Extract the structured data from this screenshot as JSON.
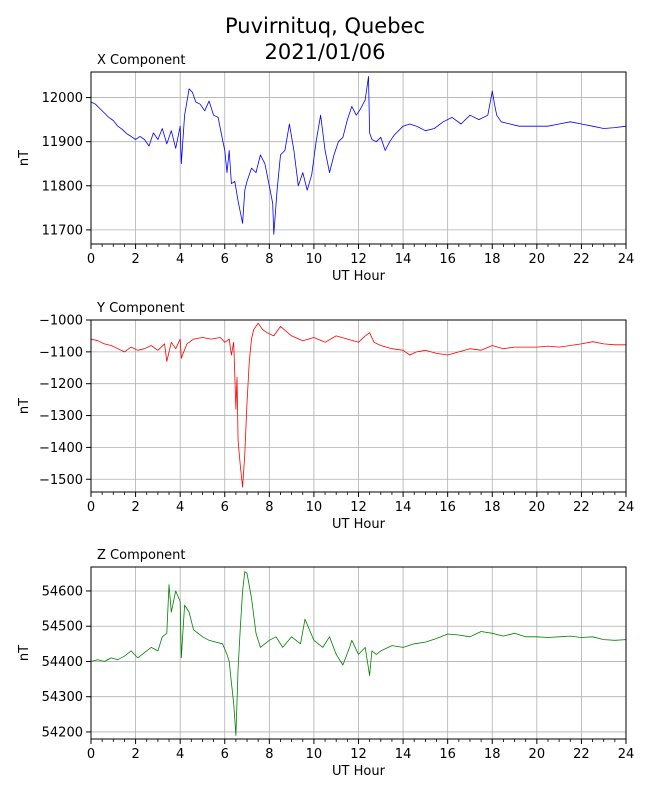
{
  "figure": {
    "title_line1": "Puvirnituq, Quebec",
    "title_line2": "2021/01/06"
  },
  "chart_data": [
    {
      "type": "line",
      "title": "X Component",
      "xlabel": "UT Hour",
      "ylabel": "nT",
      "xlim": [
        0,
        24
      ],
      "ylim": [
        11668,
        12058
      ],
      "xticks": [
        0,
        2,
        4,
        6,
        8,
        10,
        12,
        14,
        16,
        18,
        20,
        22,
        24
      ],
      "yticks": [
        11700,
        11800,
        11900,
        12000
      ],
      "grid": true,
      "series": [
        {
          "color": "#0000ff",
          "x": [
            0,
            0.2,
            0.4,
            0.6,
            0.8,
            1.0,
            1.2,
            1.4,
            1.6,
            1.8,
            2.0,
            2.2,
            2.4,
            2.6,
            2.8,
            3.0,
            3.2,
            3.4,
            3.6,
            3.8,
            4.0,
            4.05,
            4.2,
            4.4,
            4.55,
            4.7,
            4.9,
            5.1,
            5.3,
            5.5,
            5.7,
            5.9,
            6.0,
            6.1,
            6.2,
            6.3,
            6.45,
            6.6,
            6.8,
            6.9,
            7.0,
            7.2,
            7.4,
            7.6,
            7.8,
            8.0,
            8.15,
            8.2,
            8.35,
            8.5,
            8.7,
            8.9,
            9.1,
            9.3,
            9.5,
            9.7,
            9.9,
            10.1,
            10.3,
            10.5,
            10.7,
            10.9,
            11.1,
            11.3,
            11.5,
            11.7,
            11.9,
            12.1,
            12.3,
            12.45,
            12.5,
            12.6,
            12.8,
            13.0,
            13.2,
            13.4,
            13.6,
            13.8,
            14.0,
            14.3,
            14.6,
            15.0,
            15.4,
            15.8,
            16.2,
            16.6,
            17.0,
            17.4,
            17.8,
            18.0,
            18.1,
            18.2,
            18.4,
            18.8,
            19.2,
            19.6,
            20.0,
            20.5,
            21.0,
            21.5,
            22.0,
            22.5,
            23.0,
            23.5,
            24.0
          ],
          "y": [
            11990,
            11985,
            11975,
            11965,
            11955,
            11948,
            11935,
            11928,
            11918,
            11912,
            11905,
            11912,
            11905,
            11890,
            11920,
            11905,
            11930,
            11895,
            11925,
            11885,
            11935,
            11850,
            11960,
            12020,
            12012,
            11990,
            11985,
            11970,
            11992,
            11960,
            11955,
            11905,
            11880,
            11830,
            11880,
            11805,
            11810,
            11765,
            11715,
            11790,
            11810,
            11840,
            11830,
            11870,
            11850,
            11800,
            11760,
            11690,
            11790,
            11870,
            11880,
            11940,
            11880,
            11800,
            11830,
            11790,
            11825,
            11900,
            11960,
            11880,
            11830,
            11870,
            11900,
            11910,
            11950,
            11980,
            11960,
            11975,
            11995,
            12048,
            11920,
            11905,
            11900,
            11910,
            11880,
            11900,
            11915,
            11925,
            11935,
            11940,
            11935,
            11925,
            11930,
            11945,
            11955,
            11940,
            11960,
            11950,
            11960,
            12015,
            11985,
            11960,
            11945,
            11940,
            11935,
            11935,
            11935,
            11935,
            11940,
            11945,
            11940,
            11935,
            11930,
            11932,
            11935
          ]
        }
      ]
    },
    {
      "type": "line",
      "title": "Y Component",
      "xlabel": "UT Hour",
      "ylabel": "nT",
      "xlim": [
        0,
        24
      ],
      "ylim": [
        -1540,
        -1000
      ],
      "xticks": [
        0,
        2,
        4,
        6,
        8,
        10,
        12,
        14,
        16,
        18,
        20,
        22,
        24
      ],
      "yticks": [
        -1000,
        -1100,
        -1200,
        -1300,
        -1400,
        -1500
      ],
      "grid": true,
      "series": [
        {
          "color": "#ff0000",
          "x": [
            0,
            0.3,
            0.6,
            0.9,
            1.2,
            1.5,
            1.8,
            2.1,
            2.4,
            2.7,
            3.0,
            3.3,
            3.4,
            3.6,
            3.8,
            4.0,
            4.05,
            4.3,
            4.6,
            5.0,
            5.4,
            5.8,
            6.0,
            6.2,
            6.3,
            6.4,
            6.5,
            6.55,
            6.6,
            6.7,
            6.8,
            6.9,
            7.0,
            7.1,
            7.2,
            7.3,
            7.4,
            7.5,
            7.7,
            7.9,
            8.2,
            8.5,
            9.0,
            9.5,
            10.0,
            10.5,
            11.0,
            11.5,
            12.0,
            12.3,
            12.5,
            12.7,
            13.0,
            13.5,
            14.0,
            14.3,
            14.6,
            15.0,
            15.5,
            16.0,
            16.5,
            17.0,
            17.5,
            18.0,
            18.5,
            19.0,
            19.5,
            20.0,
            20.5,
            21.0,
            21.5,
            22.0,
            22.5,
            23.0,
            23.5,
            24.0
          ],
          "y": [
            -1060,
            -1065,
            -1075,
            -1080,
            -1090,
            -1100,
            -1085,
            -1095,
            -1090,
            -1080,
            -1095,
            -1075,
            -1130,
            -1070,
            -1090,
            -1060,
            -1120,
            -1075,
            -1060,
            -1055,
            -1060,
            -1055,
            -1070,
            -1060,
            -1110,
            -1070,
            -1280,
            -1180,
            -1380,
            -1460,
            -1525,
            -1420,
            -1260,
            -1130,
            -1060,
            -1030,
            -1020,
            -1010,
            -1030,
            -1040,
            -1050,
            -1020,
            -1050,
            -1065,
            -1055,
            -1070,
            -1050,
            -1060,
            -1070,
            -1050,
            -1040,
            -1070,
            -1080,
            -1090,
            -1095,
            -1110,
            -1100,
            -1095,
            -1105,
            -1110,
            -1100,
            -1090,
            -1095,
            -1080,
            -1090,
            -1085,
            -1085,
            -1085,
            -1082,
            -1085,
            -1080,
            -1075,
            -1068,
            -1075,
            -1078,
            -1078
          ]
        }
      ]
    },
    {
      "type": "line",
      "title": "Z Component",
      "xlabel": "UT Hour",
      "ylabel": "nT",
      "xlim": [
        0,
        24
      ],
      "ylim": [
        54180,
        54668
      ],
      "xticks": [
        0,
        2,
        4,
        6,
        8,
        10,
        12,
        14,
        16,
        18,
        20,
        22,
        24
      ],
      "yticks": [
        54200,
        54300,
        54400,
        54500,
        54600
      ],
      "grid": true,
      "series": [
        {
          "color": "#008000",
          "x": [
            0,
            0.3,
            0.6,
            0.9,
            1.2,
            1.5,
            1.8,
            2.1,
            2.4,
            2.7,
            3.0,
            3.2,
            3.4,
            3.5,
            3.6,
            3.8,
            4.0,
            4.05,
            4.2,
            4.4,
            4.6,
            4.8,
            5.0,
            5.3,
            5.6,
            5.9,
            6.1,
            6.2,
            6.3,
            6.4,
            6.5,
            6.6,
            6.7,
            6.8,
            6.9,
            7.0,
            7.2,
            7.4,
            7.6,
            7.8,
            8.0,
            8.3,
            8.6,
            9.0,
            9.4,
            9.6,
            10.0,
            10.4,
            10.7,
            11.0,
            11.3,
            11.6,
            11.7,
            12.0,
            12.3,
            12.5,
            12.6,
            12.8,
            13.0,
            13.5,
            14.0,
            14.5,
            15.0,
            15.5,
            16.0,
            16.5,
            17.0,
            17.5,
            18.0,
            18.5,
            19.0,
            19.5,
            20.0,
            20.5,
            21.0,
            21.5,
            22.0,
            22.5,
            23.0,
            23.5,
            24.0
          ],
          "y": [
            54400,
            54405,
            54400,
            54410,
            54405,
            54415,
            54430,
            54410,
            54425,
            54440,
            54430,
            54470,
            54480,
            54618,
            54540,
            54600,
            54570,
            54410,
            54560,
            54540,
            54490,
            54480,
            54470,
            54460,
            54455,
            54450,
            54420,
            54400,
            54340,
            54280,
            54190,
            54380,
            54500,
            54600,
            54655,
            54650,
            54580,
            54480,
            54440,
            54450,
            54460,
            54470,
            54440,
            54470,
            54450,
            54520,
            54460,
            54440,
            54470,
            54420,
            54390,
            54440,
            54460,
            54420,
            54440,
            54360,
            54430,
            54420,
            54430,
            54445,
            54440,
            54450,
            54455,
            54465,
            54478,
            54475,
            54470,
            54485,
            54480,
            54472,
            54480,
            54470,
            54470,
            54468,
            54470,
            54472,
            54468,
            54470,
            54462,
            54460,
            54462
          ]
        }
      ]
    }
  ]
}
